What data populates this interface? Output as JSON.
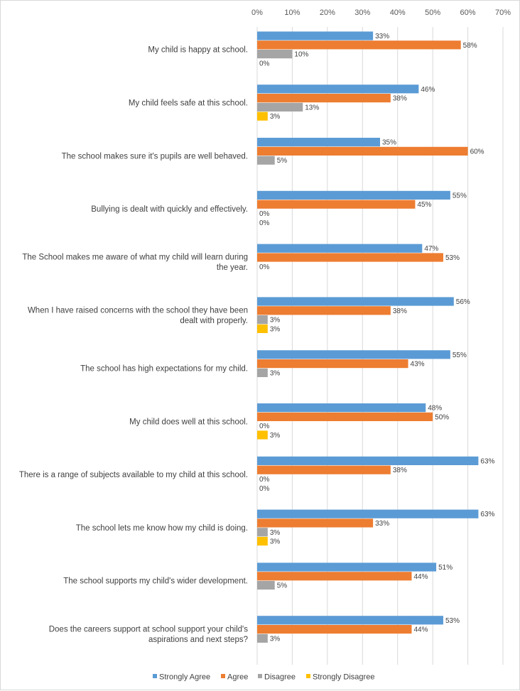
{
  "chart_data": {
    "type": "bar",
    "orientation": "horizontal",
    "title": "",
    "xlabel": "",
    "ylabel": "",
    "xlim": [
      0,
      70
    ],
    "x_ticks": [
      "0%",
      "10%",
      "20%",
      "30%",
      "40%",
      "50%",
      "60%",
      "70%"
    ],
    "x_tick_values": [
      0,
      10,
      20,
      30,
      40,
      50,
      60,
      70
    ],
    "x_axis_position": "top",
    "grid": true,
    "legend_position": "bottom",
    "categories": [
      [
        "My child is happy at school."
      ],
      [
        "My child feels safe at this school."
      ],
      [
        "The school makes sure it's pupils are well behaved."
      ],
      [
        "Bullying is dealt with quickly and effectively."
      ],
      [
        "The School makes me aware of what my child will learn during",
        "the year."
      ],
      [
        "When I have raised concerns with the school they have been",
        "dealt with properly."
      ],
      [
        "The school has high expectations for my child."
      ],
      [
        "My child does well at this school."
      ],
      [
        "There is a range of subjects available to my child at this school."
      ],
      [
        "The school lets me know how my child is doing."
      ],
      [
        "The school supports my child's wider development."
      ],
      [
        "Does the careers support at school support your child's",
        "aspirations and next steps?"
      ]
    ],
    "series": [
      {
        "name": "Strongly Agree",
        "color": "#5b9bd5",
        "values": [
          33,
          46,
          35,
          55,
          47,
          56,
          55,
          48,
          63,
          63,
          51,
          53
        ],
        "labels": [
          "33%",
          "46%",
          "35%",
          "55%",
          "47%",
          "56%",
          "55%",
          "48%",
          "63%",
          "63%",
          "51%",
          "53%"
        ]
      },
      {
        "name": "Agree",
        "color": "#ed7d31",
        "values": [
          58,
          38,
          60,
          45,
          53,
          38,
          43,
          50,
          38,
          33,
          44,
          44
        ],
        "labels": [
          "58%",
          "38%",
          "60%",
          "45%",
          "53%",
          "38%",
          "43%",
          "50%",
          "38%",
          "33%",
          "44%",
          "44%"
        ]
      },
      {
        "name": "Disagree",
        "color": "#a5a5a5",
        "values": [
          10,
          13,
          5,
          0,
          0,
          3,
          3,
          0,
          0,
          3,
          5,
          3
        ],
        "labels": [
          "10%",
          "13%",
          "5%",
          "0%",
          "0%",
          "3%",
          "3%",
          "0%",
          "0%",
          "3%",
          "5%",
          "3%"
        ]
      },
      {
        "name": "Strongly Disagree",
        "color": "#ffc000",
        "values": [
          0,
          3,
          null,
          0,
          null,
          3,
          null,
          3,
          0,
          3,
          null,
          null
        ],
        "labels": [
          "0%",
          "3%",
          null,
          "0%",
          null,
          "3%",
          null,
          "3%",
          "0%",
          "3%",
          null,
          null
        ]
      }
    ]
  }
}
